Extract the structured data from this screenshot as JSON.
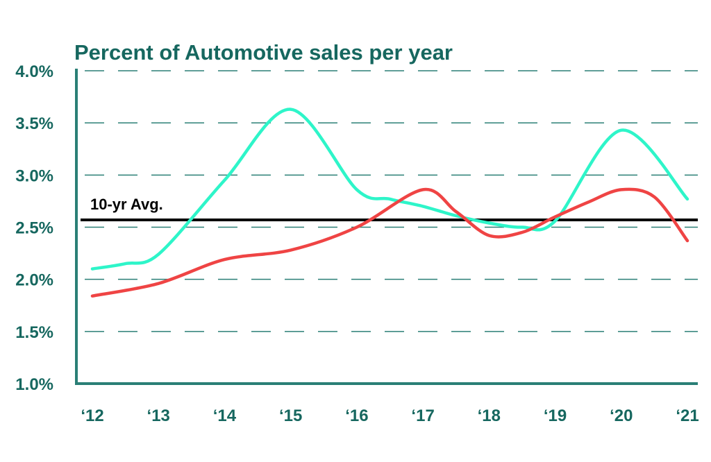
{
  "chart_data": {
    "type": "line",
    "title": "Percent of Automotive sales per year",
    "xlabel": "",
    "ylabel": "",
    "categories": [
      "‘12",
      "‘13",
      "‘14",
      "‘15",
      "‘16",
      "‘17",
      "‘18",
      "‘19",
      "‘20",
      "‘21"
    ],
    "y_ticks": [
      "1.0%",
      "1.5%",
      "2.0%",
      "2.5%",
      "3.0%",
      "3.5%",
      "4.0%"
    ],
    "ylim": [
      1.0,
      4.0
    ],
    "grid": true,
    "legend": "none",
    "series": [
      {
        "color": "#2EF5C9",
        "x": [
          0,
          0.5,
          1,
          2,
          3,
          4,
          4.5,
          5,
          5.5,
          6,
          6.5,
          7,
          8,
          9
        ],
        "values": [
          2.1,
          2.15,
          2.24,
          2.95,
          3.63,
          2.86,
          2.77,
          2.7,
          2.61,
          2.54,
          2.5,
          2.56,
          3.43,
          2.77
        ]
      },
      {
        "color": "#EF4444",
        "x": [
          0,
          1,
          2,
          3,
          4,
          5,
          5.5,
          6,
          6.5,
          7,
          7.5,
          8,
          8.5,
          9
        ],
        "values": [
          1.84,
          1.96,
          2.19,
          2.28,
          2.5,
          2.86,
          2.65,
          2.42,
          2.45,
          2.6,
          2.74,
          2.86,
          2.79,
          2.37
        ]
      }
    ],
    "annotations": [
      {
        "label": "10-yr Avg.",
        "value": 2.57,
        "color": "#000000"
      }
    ],
    "colors": {
      "axis": "#2A7F76",
      "text": "#16675F",
      "grid": "#2A7F76"
    }
  }
}
